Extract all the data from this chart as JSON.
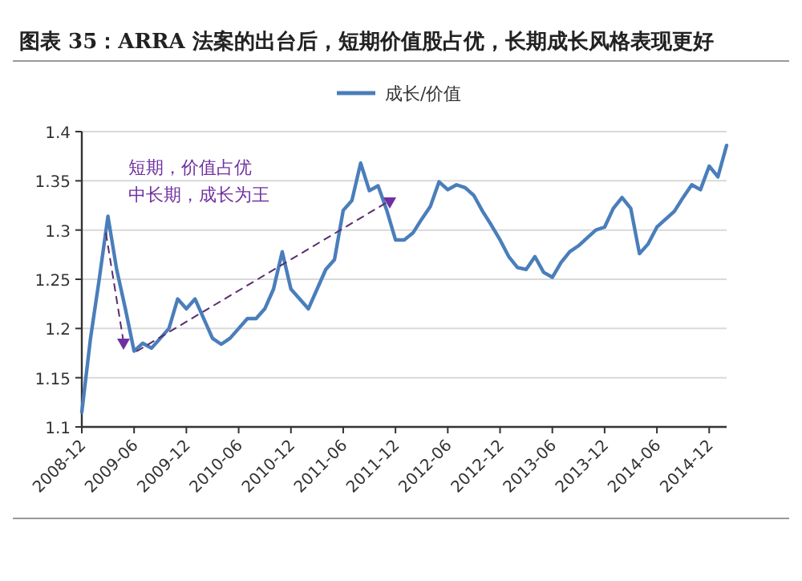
{
  "chart_data": {
    "type": "line",
    "title": "图表 35：ARRA 法案的出台后，短期价值股占优，长期成长风格表现更好",
    "x": [
      "2008-12",
      "2009-01",
      "2009-02",
      "2009-03",
      "2009-04",
      "2009-05",
      "2009-06",
      "2009-07",
      "2009-08",
      "2009-09",
      "2009-10",
      "2009-11",
      "2009-12",
      "2010-01",
      "2010-02",
      "2010-03",
      "2010-04",
      "2010-05",
      "2010-06",
      "2010-07",
      "2010-08",
      "2010-09",
      "2010-10",
      "2010-11",
      "2010-12",
      "2011-01",
      "2011-02",
      "2011-03",
      "2011-04",
      "2011-05",
      "2011-06",
      "2011-07",
      "2011-08",
      "2011-09",
      "2011-10",
      "2011-11",
      "2011-12",
      "2012-01",
      "2012-02",
      "2012-03",
      "2012-04",
      "2012-05",
      "2012-06",
      "2012-07",
      "2012-08",
      "2012-09",
      "2012-10",
      "2012-11",
      "2012-12",
      "2013-01",
      "2013-02",
      "2013-03",
      "2013-04",
      "2013-05",
      "2013-06",
      "2013-07",
      "2013-08",
      "2013-09",
      "2013-10",
      "2013-11",
      "2013-12",
      "2014-01",
      "2014-02",
      "2014-03",
      "2014-04",
      "2014-05",
      "2014-06",
      "2014-07",
      "2014-08",
      "2014-09",
      "2014-10",
      "2014-11",
      "2014-12",
      "2015-01",
      "2015-02"
    ],
    "series": [
      {
        "name": "成长/价值",
        "color": "#4a7ebb",
        "values": [
          1.115,
          1.19,
          1.25,
          1.314,
          1.26,
          1.22,
          1.177,
          1.185,
          1.18,
          1.19,
          1.2,
          1.23,
          1.22,
          1.23,
          1.21,
          1.19,
          1.184,
          1.19,
          1.2,
          1.21,
          1.21,
          1.22,
          1.24,
          1.278,
          1.24,
          1.23,
          1.22,
          1.24,
          1.26,
          1.27,
          1.32,
          1.33,
          1.368,
          1.34,
          1.345,
          1.32,
          1.29,
          1.29,
          1.297,
          1.311,
          1.324,
          1.349,
          1.341,
          1.346,
          1.343,
          1.335,
          1.319,
          1.305,
          1.29,
          1.273,
          1.262,
          1.26,
          1.273,
          1.257,
          1.252,
          1.267,
          1.278,
          1.284,
          1.292,
          1.3,
          1.303,
          1.322,
          1.333,
          1.322,
          1.276,
          1.286,
          1.303,
          1.311,
          1.319,
          1.333,
          1.346,
          1.341,
          1.365,
          1.354,
          1.386
        ]
      }
    ],
    "xlim": [
      "2008-12",
      "2015-02"
    ],
    "xticks": [
      "2008-12",
      "2009-06",
      "2009-12",
      "2010-06",
      "2010-12",
      "2011-06",
      "2011-12",
      "2012-06",
      "2012-12",
      "2013-06",
      "2013-12",
      "2014-06",
      "2014-12"
    ],
    "ylim": [
      1.1,
      1.4
    ],
    "yticks": [
      1.1,
      1.15,
      1.2,
      1.25,
      1.3,
      1.35,
      1.4
    ],
    "grid": "y",
    "legend": "top",
    "annotations": [
      "短期，价值占优",
      "中长期，成长为王"
    ]
  }
}
